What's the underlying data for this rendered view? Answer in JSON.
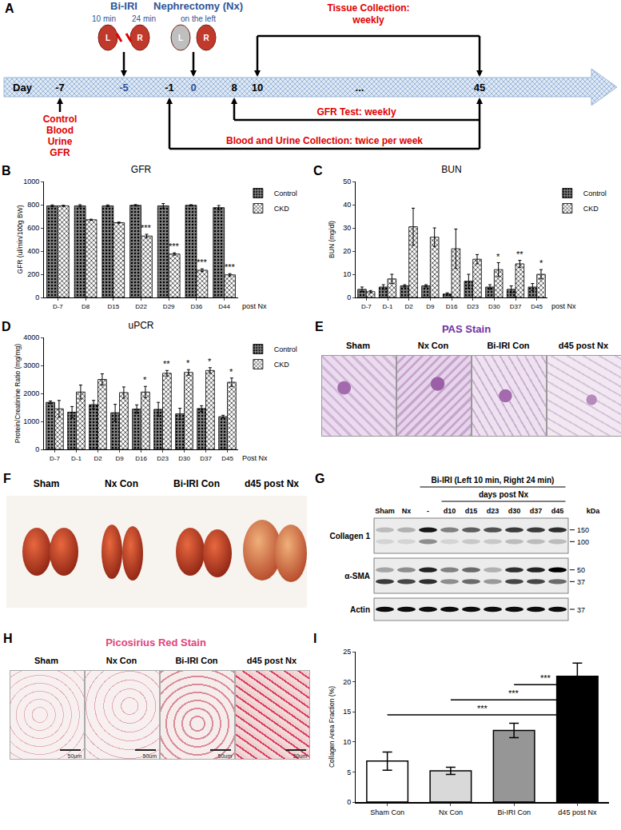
{
  "chart_data": [
    {
      "panel_label": "B",
      "type": "bar",
      "title": "GFR",
      "y_label": "GFR (ul/min/100g BW)",
      "x_label": "post Nx",
      "categories": [
        "D-7",
        "D8",
        "D15",
        "D22",
        "D29",
        "D36",
        "D44"
      ],
      "series": [
        {
          "name": "Control",
          "color": "#7f7f7f",
          "marker": "dotted",
          "values": [
            790,
            790,
            790,
            795,
            790,
            795,
            775
          ],
          "errors": [
            8,
            10,
            8,
            6,
            20,
            5,
            18
          ]
        },
        {
          "name": "CKD",
          "color": "#ffffff",
          "marker": "crosshatch",
          "values": [
            790,
            670,
            645,
            530,
            375,
            235,
            195
          ],
          "errors": [
            5,
            5,
            5,
            15,
            10,
            12,
            10
          ],
          "significance": [
            null,
            null,
            null,
            "***",
            "***",
            "***",
            "***"
          ]
        }
      ],
      "ylim": [
        0,
        1000
      ],
      "yticks": [
        0,
        200,
        400,
        600,
        800,
        1000
      ],
      "grid": false,
      "legend": "right"
    },
    {
      "panel_label": "C",
      "type": "bar",
      "title": "BUN",
      "y_label": "BUN (mg/dl)",
      "x_label": "post Nx",
      "categories": [
        "D-7",
        "D-1",
        "D2",
        "D9",
        "D16",
        "D23",
        "D30",
        "D37",
        "D45"
      ],
      "series": [
        {
          "name": "Control",
          "color": "#7f7f7f",
          "marker": "dotted",
          "values": [
            3.5,
            4.5,
            5,
            5,
            1.5,
            7,
            4.5,
            3.5,
            4.5
          ],
          "errors": [
            1,
            1,
            0.5,
            0.5,
            0.5,
            3,
            1,
            1.5,
            1.5
          ]
        },
        {
          "name": "CKD",
          "color": "#ffffff",
          "marker": "crosshatch",
          "values": [
            2.5,
            8,
            30.5,
            26,
            21,
            16.5,
            12,
            14.5,
            10
          ],
          "errors": [
            0.5,
            2,
            8,
            4,
            8.5,
            2,
            3,
            1.5,
            2
          ],
          "significance": [
            null,
            null,
            null,
            null,
            null,
            null,
            "*",
            "**",
            "*"
          ]
        }
      ],
      "ylim": [
        0,
        50
      ],
      "yticks": [
        0,
        10,
        20,
        30,
        40,
        50
      ],
      "grid": false,
      "legend": "right"
    },
    {
      "panel_label": "D",
      "type": "bar",
      "title": "uPCR",
      "y_label": "Protein/Creatinine Ratio (mg/mg)",
      "x_label": "Post Nx",
      "categories": [
        "D-7",
        "D-1",
        "D2",
        "D9",
        "D16",
        "D23",
        "D30",
        "D37",
        "D45"
      ],
      "series": [
        {
          "name": "Control",
          "color": "#7f7f7f",
          "marker": "dotted",
          "values": [
            1680,
            1330,
            1600,
            1310,
            1440,
            1430,
            1270,
            1460,
            1170
          ],
          "errors": [
            50,
            200,
            150,
            300,
            150,
            250,
            200,
            100,
            50
          ]
        },
        {
          "name": "CKD",
          "color": "#ffffff",
          "marker": "crosshatch",
          "values": [
            1450,
            2050,
            2500,
            2030,
            2050,
            2720,
            2750,
            2820,
            2400
          ],
          "errors": [
            300,
            250,
            200,
            200,
            200,
            100,
            100,
            100,
            150
          ],
          "significance": [
            null,
            null,
            null,
            null,
            "*",
            "**",
            "*",
            "*",
            "*"
          ]
        }
      ],
      "ylim": [
        0,
        4000
      ],
      "yticks": [
        0,
        1000,
        2000,
        3000,
        4000
      ],
      "grid": false,
      "legend": "right"
    },
    {
      "panel_label": "I",
      "type": "bar",
      "y_label": "Collagen Area Fraction (%)",
      "categories": [
        "Sham Con",
        "Nx Con",
        "Bi-IRI Con",
        "d45 post Nx"
      ],
      "values": [
        6.8,
        5.2,
        11.9,
        20.9
      ],
      "errors": [
        1.5,
        0.6,
        1.2,
        2.2
      ],
      "colors": [
        "#ffffff",
        "#d9d9d9",
        "#969696",
        "#000000"
      ],
      "comparisons": [
        {
          "from": "Bi-IRI Con",
          "to": "d45 post Nx",
          "y": 19.5,
          "label": "***"
        },
        {
          "from": "Nx Con",
          "to": "d45 post Nx",
          "y": 17,
          "label": "***"
        },
        {
          "from": "Sham Con",
          "to": "d45 post Nx",
          "y": 14.5,
          "label": "***"
        }
      ],
      "ylim": [
        0,
        25
      ],
      "yticks": [
        0,
        5,
        10,
        15,
        20,
        25
      ],
      "grid": false
    }
  ],
  "figure": {
    "A": {
      "letter": "A",
      "bi_iri": {
        "title": "Bi-IRI",
        "left_time": "10 min",
        "right_time": "24 min"
      },
      "kidney_labels": [
        "L",
        "R"
      ],
      "nephrectomy": {
        "title": "Nephrectomy (Nx)",
        "subtitle": "on the left"
      },
      "tissue": {
        "title": "Tissue Collection:",
        "subtitle": "weekly"
      },
      "timeline": {
        "label": "Day",
        "days": [
          "-7",
          "-5",
          "-1",
          "0",
          "8",
          "10",
          "...",
          "45"
        ]
      },
      "control": [
        "Control",
        "Blood",
        "Urine",
        "GFR"
      ],
      "gfr_test": "GFR Test: weekly",
      "blood_urine": "Blood and Urine Collection: twice per week"
    },
    "E": {
      "letter": "E",
      "title": "PAS Stain",
      "labels": [
        "Sham",
        "Nx Con",
        "Bi-IRI Con",
        "d45 post Nx"
      ]
    },
    "F": {
      "letter": "F",
      "labels": [
        "Sham",
        "Nx Con",
        "Bi-IRI Con",
        "d45 post Nx"
      ]
    },
    "G": {
      "letter": "G",
      "header": "Bi-IRI (Left 10 min, Right 24 min)",
      "subheader": "days post Nx",
      "unit": "kDa",
      "lanes": [
        "Sham",
        "Nx",
        "-",
        "d10",
        "d15",
        "d23",
        "d30",
        "d37",
        "d45"
      ],
      "rows": [
        {
          "name": "Collagen 1",
          "markers": [
            "150",
            "100"
          ],
          "bands": [
            [
              0.2,
              0.25,
              0.9,
              0.45,
              0.6,
              0.65,
              0.75,
              0.75,
              0.8
            ],
            [
              0.1,
              0.1,
              0.4,
              0.1,
              0.15,
              0.15,
              0.2,
              0.2,
              0.2
            ]
          ]
        },
        {
          "name": "α-SMA",
          "markers": [
            "50",
            "37"
          ],
          "bands": [
            [
              0.3,
              0.4,
              0.85,
              0.45,
              0.55,
              0.25,
              0.8,
              0.85,
              1.0
            ],
            [
              0.75,
              0.7,
              0.8,
              0.4,
              0.55,
              0.35,
              0.7,
              0.7,
              0.55
            ]
          ]
        },
        {
          "name": "Actin",
          "markers": [
            "37"
          ],
          "bands": [
            [
              0.95,
              0.95,
              0.95,
              0.95,
              0.95,
              0.95,
              0.95,
              0.95,
              0.95
            ]
          ]
        }
      ]
    },
    "H": {
      "letter": "H",
      "title": "Picosirius Red Stain",
      "labels": [
        "Sham",
        "Nx Con",
        "Bi-IRI Con",
        "d45 post Nx"
      ],
      "scale_bar": "50um"
    }
  }
}
